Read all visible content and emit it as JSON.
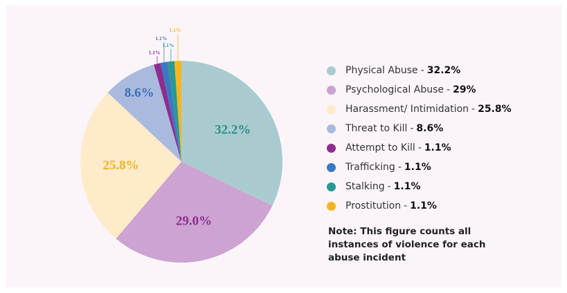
{
  "chart_data": {
    "type": "pie",
    "categories": [
      "Physical Abuse",
      "Psychological Abuse",
      "Harassment/ Intimidation",
      "Threat to Kill",
      "Attempt to Kill",
      "Trafficking",
      "Stalking",
      "Prostitution"
    ],
    "values": [
      32.2,
      29,
      25.8,
      8.6,
      1.1,
      1.1,
      1.1,
      1.1
    ],
    "value_labels": [
      "32.2%",
      "29.0%",
      "25.8%",
      "8.6%",
      "1.1%",
      "1.1%",
      "1.1%",
      "1.1%"
    ],
    "legend_labels": [
      "32.2%",
      "29%",
      "25.8%",
      "8.6%",
      "1.1%",
      "1.1%",
      "1.1%",
      "1.1%"
    ],
    "legend_separator": "-",
    "colors": [
      "#a9cbcf",
      "#cca3d1",
      "#fdebc9",
      "#aabade",
      "#8d2e8e",
      "#3b78c4",
      "#2a9993",
      "#f6b520"
    ],
    "label_colors": [
      "#2a8f8a",
      "#8d2e8e",
      "#f2b11e",
      "#3a6db5",
      "#8d2e8e",
      "#3b78c4",
      "#2a9993",
      "#f6b520"
    ],
    "note": "Note: This figure counts all instances of violence for each abuse incident",
    "legend": "right"
  }
}
